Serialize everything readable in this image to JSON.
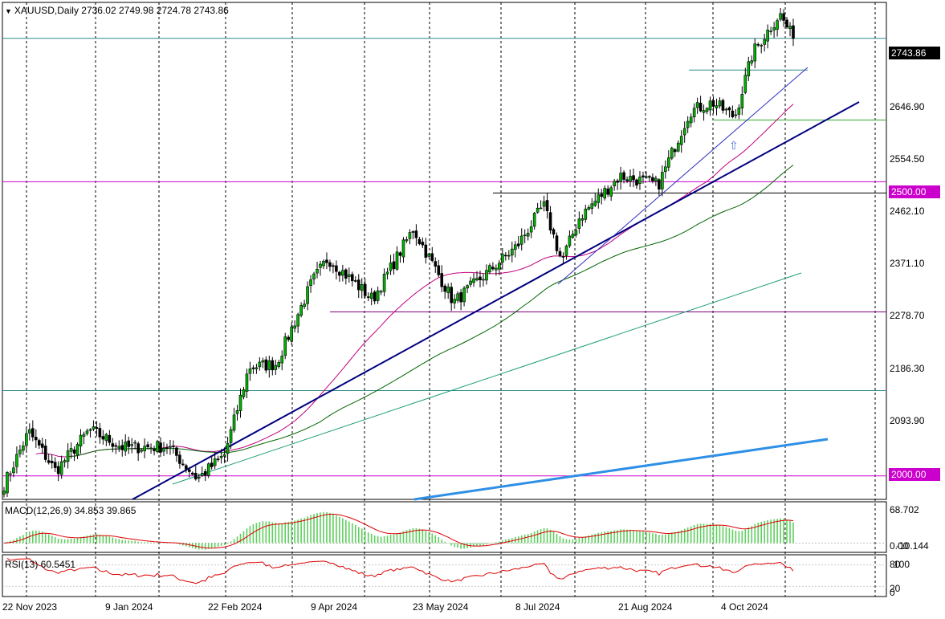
{
  "window": {
    "symbol_header": "XAUUSD,Daily",
    "ohlc": "2736.02 2749.98 2724.78 2743.86"
  },
  "price_axis": {
    "labels": [
      "2646.90",
      "2554.50",
      "2462.10",
      "2371.10",
      "2278.70",
      "2186.30",
      "2093.90"
    ],
    "current_price": "2743.86",
    "level_badges": [
      "2500.00",
      "2000.00"
    ]
  },
  "time_axis": {
    "labels": [
      "22 Nov 2023",
      "9 Jan 2024",
      "22 Feb 2024",
      "9 Apr 2024",
      "23 May 2024",
      "8 Jul 2024",
      "21 Aug 2024",
      "4 Oct 2024"
    ]
  },
  "macd": {
    "label": "MACD(12,26,9) 34.853 39.865",
    "axis_top": "68.702",
    "axis_bottom_a": "0.00",
    "axis_bottom_b": "-10.144"
  },
  "rsi": {
    "label": "RSI(13) 60.5451",
    "axis_top_a": "80",
    "axis_top_b": "100",
    "axis_bottom_a": "20",
    "axis_bottom_b": "0"
  },
  "colors": {
    "bull_candle": "#00b400",
    "bear_candle": "#000000",
    "ma_fast": "#c0007f",
    "ma_slow": "#006400",
    "trend_main": "#000080",
    "trend_blue": "#2e8fe6",
    "level_magenta": "#cc00cc",
    "level_teal": "#2e8b8b",
    "macd_hist": "#5fcf5f",
    "macd_signal": "#dd0000",
    "rsi_line": "#dd0000"
  },
  "chart_data": {
    "type": "candlestick",
    "title": "XAUUSD,Daily",
    "y_axis": {
      "min": 1960,
      "max": 2805
    },
    "key_levels": [
      2743.86,
      2690,
      2605,
      2500,
      2481,
      2278.7,
      2145,
      2000
    ],
    "price_path": [
      {
        "date": "2023-11-20",
        "close": 1985
      },
      {
        "date": "2023-12-01",
        "close": 2075
      },
      {
        "date": "2023-12-13",
        "close": 2008
      },
      {
        "date": "2023-12-28",
        "close": 2078
      },
      {
        "date": "2024-01-12",
        "close": 2048
      },
      {
        "date": "2024-02-01",
        "close": 2050
      },
      {
        "date": "2024-02-14",
        "close": 1995
      },
      {
        "date": "2024-02-26",
        "close": 2035
      },
      {
        "date": "2024-03-08",
        "close": 2185
      },
      {
        "date": "2024-03-20",
        "close": 2190
      },
      {
        "date": "2024-04-05",
        "close": 2330
      },
      {
        "date": "2024-04-12",
        "close": 2370
      },
      {
        "date": "2024-05-02",
        "close": 2300
      },
      {
        "date": "2024-05-20",
        "close": 2420
      },
      {
        "date": "2024-06-07",
        "close": 2295
      },
      {
        "date": "2024-07-05",
        "close": 2390
      },
      {
        "date": "2024-07-17",
        "close": 2460
      },
      {
        "date": "2024-07-25",
        "close": 2365
      },
      {
        "date": "2024-08-02",
        "close": 2440
      },
      {
        "date": "2024-08-20",
        "close": 2510
      },
      {
        "date": "2024-09-06",
        "close": 2495
      },
      {
        "date": "2024-09-20",
        "close": 2620
      },
      {
        "date": "2024-09-30",
        "close": 2635
      },
      {
        "date": "2024-10-10",
        "close": 2610
      },
      {
        "date": "2024-10-18",
        "close": 2720
      },
      {
        "date": "2024-10-30",
        "close": 2785
      },
      {
        "date": "2024-11-05",
        "close": 2743.86
      }
    ]
  }
}
